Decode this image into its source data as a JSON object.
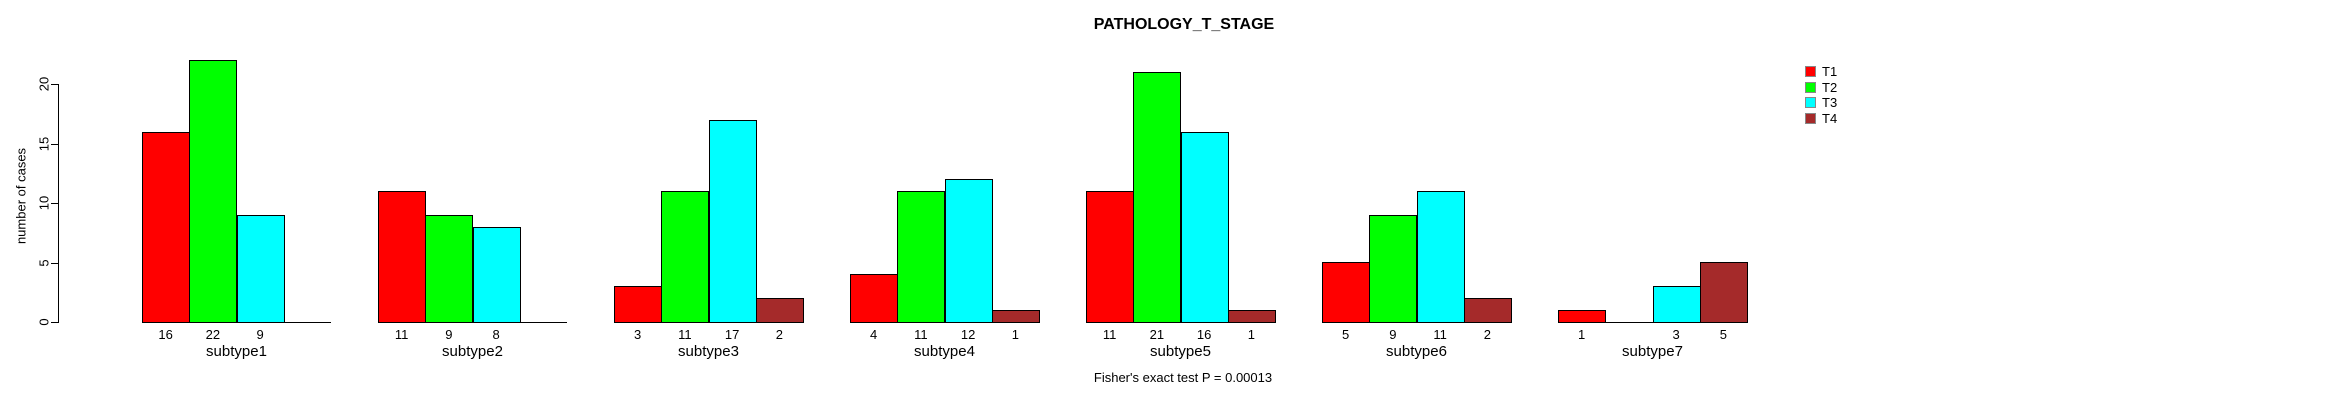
{
  "chart_data": {
    "type": "bar",
    "grouped": true,
    "title": "PATHOLOGY_T_STAGE",
    "xlabel": "",
    "ylabel": "number of cases",
    "categories": [
      "subtype1",
      "subtype2",
      "subtype3",
      "subtype4",
      "subtype5",
      "subtype6",
      "subtype7"
    ],
    "series": [
      {
        "name": "T1",
        "color": "#FF0000",
        "values": [
          16,
          11,
          3,
          4,
          11,
          5,
          1
        ]
      },
      {
        "name": "T2",
        "color": "#00FF00",
        "values": [
          22,
          9,
          11,
          11,
          21,
          9,
          0
        ]
      },
      {
        "name": "T3",
        "color": "#00FFFF",
        "values": [
          9,
          8,
          17,
          12,
          16,
          11,
          3
        ]
      },
      {
        "name": "T4",
        "color": "#A52A2A",
        "values": [
          0,
          0,
          2,
          1,
          1,
          2,
          5
        ]
      }
    ],
    "y_ticks": [
      0,
      5,
      10,
      15,
      20
    ],
    "ylim": [
      0,
      22
    ],
    "grid": false,
    "legend_position": "right-outside",
    "bar_value_labels": true,
    "zero_bars_hidden": true,
    "annotation": "Fisher's exact test P = 0.00013"
  }
}
